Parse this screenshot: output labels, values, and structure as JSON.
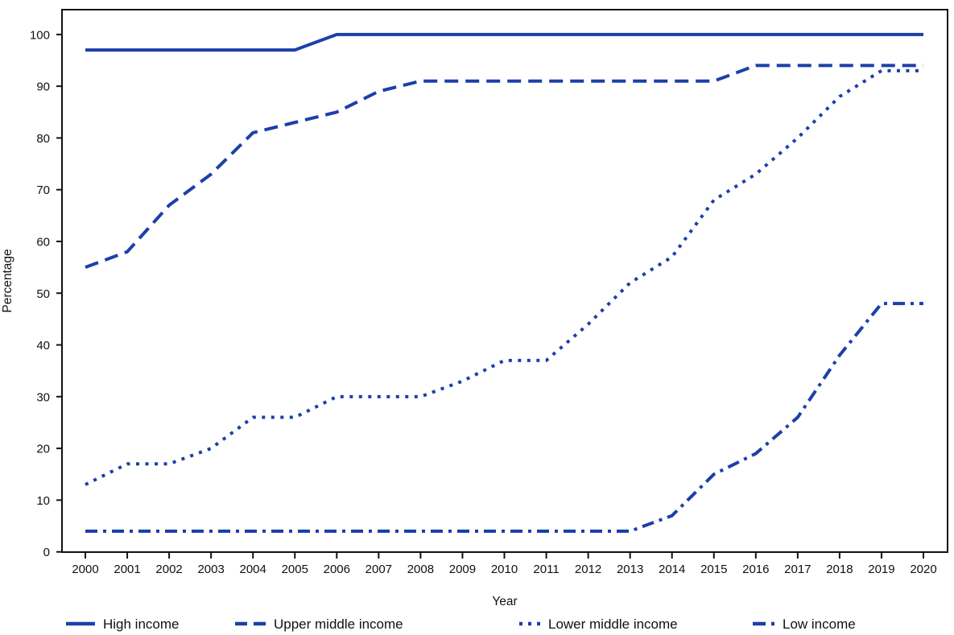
{
  "chart_data": {
    "type": "line",
    "title": "",
    "xlabel": "Year",
    "ylabel": "Percentage",
    "x": [
      2000,
      2001,
      2002,
      2003,
      2004,
      2005,
      2006,
      2007,
      2008,
      2009,
      2010,
      2011,
      2012,
      2013,
      2014,
      2015,
      2016,
      2017,
      2018,
      2019,
      2020
    ],
    "ylim": [
      0,
      100
    ],
    "yticks": [
      0,
      10,
      20,
      30,
      40,
      50,
      60,
      70,
      80,
      90,
      100
    ],
    "grid": false,
    "legend_position": "bottom",
    "line_color": "#1c3faa",
    "axis_color": "#111111",
    "series": [
      {
        "name": "High income",
        "style": "solid",
        "values": [
          97,
          97,
          97,
          97,
          97,
          97,
          100,
          100,
          100,
          100,
          100,
          100,
          100,
          100,
          100,
          100,
          100,
          100,
          100,
          100,
          100
        ]
      },
      {
        "name": "Upper middle income",
        "style": "dashed",
        "values": [
          55,
          58,
          67,
          73,
          81,
          83,
          85,
          89,
          91,
          91,
          91,
          91,
          91,
          91,
          91,
          91,
          94,
          94,
          94,
          94,
          94
        ]
      },
      {
        "name": "Lower middle income",
        "style": "dotted",
        "values": [
          13,
          17,
          17,
          20,
          26,
          26,
          30,
          30,
          30,
          33,
          37,
          37,
          44,
          52,
          57,
          68,
          73,
          80,
          88,
          93,
          93
        ]
      },
      {
        "name": "Low income",
        "style": "dashdot",
        "values": [
          4,
          4,
          4,
          4,
          4,
          4,
          4,
          4,
          4,
          4,
          4,
          4,
          4,
          4,
          7,
          15,
          19,
          26,
          38,
          48,
          48
        ]
      }
    ]
  }
}
